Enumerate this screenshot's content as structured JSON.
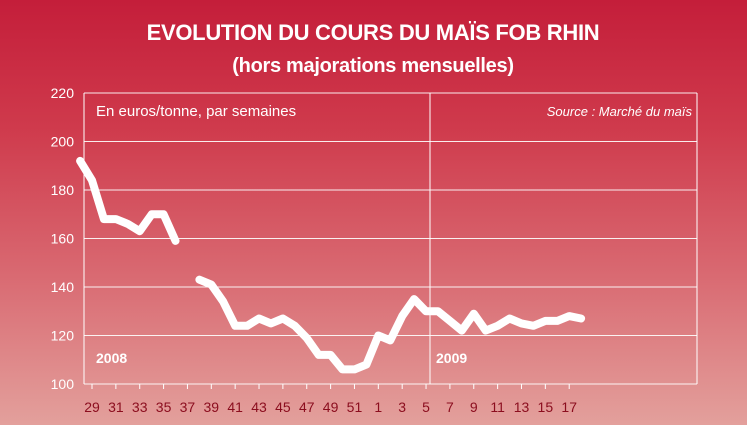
{
  "chart_data": {
    "type": "line",
    "title": "EVOLUTION DU COURS DU MAÏS FOB RHIN",
    "subtitle": "(hors majorations mensuelles)",
    "unit_label": "En euros/tonne, par semaines",
    "source": "Source : Marché du maïs",
    "ylim": [
      100,
      220
    ],
    "yticks": [
      100,
      120,
      140,
      160,
      180,
      200,
      220
    ],
    "xticks": [
      "29",
      "31",
      "33",
      "35",
      "37",
      "39",
      "41",
      "43",
      "45",
      "47",
      "49",
      "51",
      "1",
      "3",
      "5",
      "7",
      "9",
      "11",
      "13",
      "15",
      "17"
    ],
    "year_labels": [
      "2008",
      "2009"
    ],
    "grid": true,
    "series": [
      {
        "segments": [
          [
            {
              "w": "28",
              "v": 192
            },
            {
              "w": "29",
              "v": 184
            },
            {
              "w": "30",
              "v": 168
            },
            {
              "w": "31",
              "v": 168
            },
            {
              "w": "32",
              "v": 166
            },
            {
              "w": "33",
              "v": 163
            },
            {
              "w": "34",
              "v": 170
            },
            {
              "w": "35",
              "v": 170
            },
            {
              "w": "36",
              "v": 159
            }
          ],
          [
            {
              "w": "38",
              "v": 143
            },
            {
              "w": "39",
              "v": 141
            },
            {
              "w": "40",
              "v": 134
            },
            {
              "w": "41",
              "v": 124
            },
            {
              "w": "42",
              "v": 124
            },
            {
              "w": "43",
              "v": 127
            },
            {
              "w": "44",
              "v": 125
            },
            {
              "w": "45",
              "v": 127
            },
            {
              "w": "46",
              "v": 124
            },
            {
              "w": "47",
              "v": 119
            },
            {
              "w": "48",
              "v": 112
            },
            {
              "w": "49",
              "v": 112
            },
            {
              "w": "50",
              "v": 106
            },
            {
              "w": "51",
              "v": 106
            },
            {
              "w": "52",
              "v": 108
            },
            {
              "w": "1",
              "v": 120
            },
            {
              "w": "2",
              "v": 118
            },
            {
              "w": "3",
              "v": 128
            },
            {
              "w": "4",
              "v": 135
            },
            {
              "w": "5",
              "v": 130
            },
            {
              "w": "6",
              "v": 130
            },
            {
              "w": "7",
              "v": 126
            },
            {
              "w": "8",
              "v": 122
            },
            {
              "w": "9",
              "v": 129
            },
            {
              "w": "10",
              "v": 122
            },
            {
              "w": "11",
              "v": 124
            },
            {
              "w": "12",
              "v": 127
            },
            {
              "w": "13",
              "v": 125
            },
            {
              "w": "14",
              "v": 124
            },
            {
              "w": "15",
              "v": 126
            },
            {
              "w": "16",
              "v": 126
            },
            {
              "w": "17",
              "v": 128
            },
            {
              "w": "18",
              "v": 127
            }
          ]
        ]
      }
    ]
  },
  "colors": {
    "line": "#ffffff",
    "grid": "#ffffff",
    "xtick": "#8b0d1e"
  }
}
